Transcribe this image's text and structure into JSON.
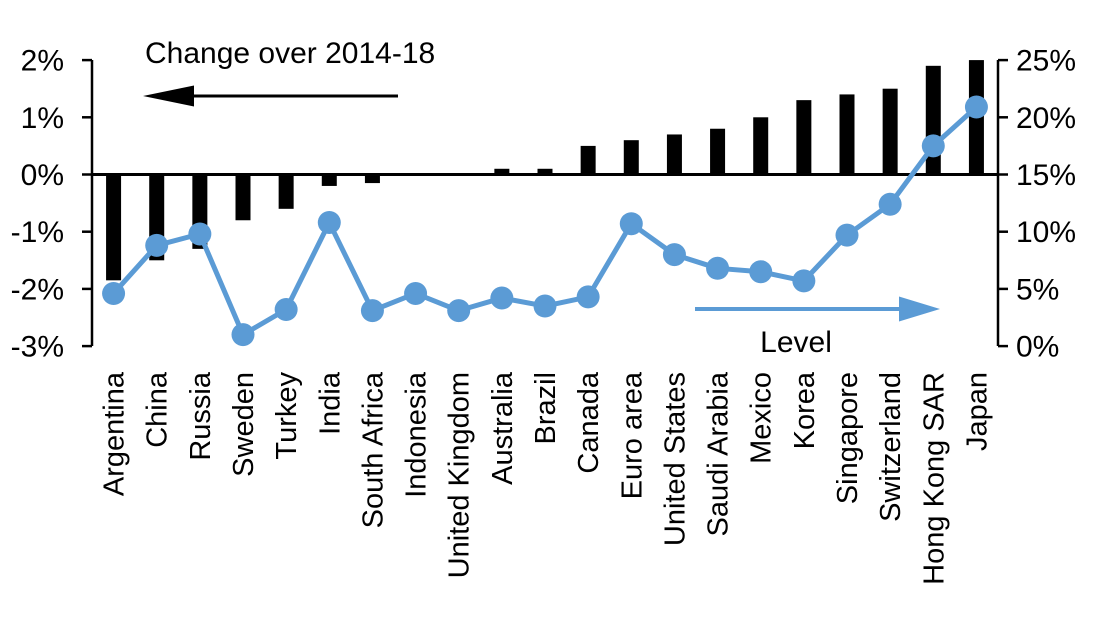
{
  "chart_data": {
    "type": "combo-bar-line",
    "categories": [
      "Argentina",
      "China",
      "Russia",
      "Sweden",
      "Turkey",
      "India",
      "South Africa",
      "Indonesia",
      "United Kingdom",
      "Australia",
      "Brazil",
      "Canada",
      "Euro area",
      "United States",
      "Saudi Arabia",
      "Mexico",
      "Korea",
      "Singapore",
      "Switzerland",
      "Hong Kong SAR",
      "Japan"
    ],
    "series": [
      {
        "name": "Change over 2014-18",
        "type": "bar",
        "axis": "left",
        "values": [
          -1.85,
          -1.5,
          -1.3,
          -0.8,
          -0.6,
          -0.2,
          -0.15,
          0,
          0,
          0.1,
          0.1,
          0.5,
          0.6,
          0.7,
          0.8,
          1.0,
          1.3,
          1.4,
          1.5,
          1.9,
          2.0
        ]
      },
      {
        "name": "Level",
        "type": "line",
        "axis": "right",
        "values": [
          4.6,
          8.8,
          9.8,
          1.0,
          3.2,
          10.8,
          3.1,
          4.6,
          3.1,
          4.2,
          3.5,
          4.3,
          10.7,
          8.0,
          6.8,
          6.5,
          5.7,
          9.7,
          12.4,
          17.5,
          20.9
        ]
      }
    ],
    "left_axis": {
      "tick_labels": [
        "2%",
        "1%",
        "0%",
        "-1%",
        "-2%",
        "-3%"
      ],
      "tick_values": [
        2,
        1,
        0,
        -1,
        -2,
        -3
      ],
      "min": -3,
      "max": 2
    },
    "right_axis": {
      "tick_labels": [
        "25%",
        "20%",
        "15%",
        "10%",
        "5%",
        "0%"
      ],
      "tick_values": [
        25,
        20,
        15,
        10,
        5,
        0
      ],
      "min": 0,
      "max": 25
    },
    "annotations": {
      "bar_series_label": "Change over 2014-18",
      "line_series_label": "Level"
    },
    "grid": "off",
    "legend_position": "in-plot annotations with direction arrows"
  },
  "colors": {
    "bar": "#000000",
    "line": "#5B9BD5",
    "text": "#000000",
    "background": "#FFFFFF"
  }
}
